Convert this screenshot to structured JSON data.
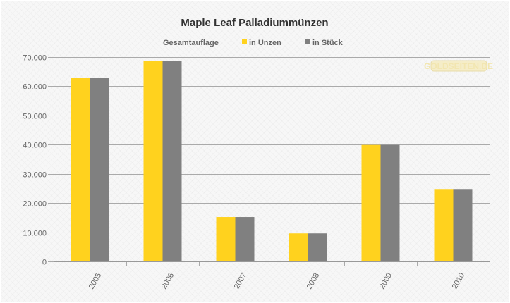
{
  "chart_data": {
    "type": "bar",
    "title": "Maple Leaf Palladiummünzen",
    "legend_title": "Gesamtauflage",
    "legend_position": "top",
    "categories": [
      "2005",
      "2006",
      "2007",
      "2008",
      "2009",
      "2010"
    ],
    "series": [
      {
        "name": "in Unzen",
        "color": "#ffd21e",
        "values": [
          63000,
          68700,
          15200,
          9600,
          39900,
          24800
        ]
      },
      {
        "name": "in Stück",
        "color": "#808080",
        "values": [
          63000,
          68700,
          15200,
          9600,
          39900,
          24800
        ]
      }
    ],
    "ylim": [
      0,
      70000
    ],
    "yticks": [
      0,
      10000,
      20000,
      30000,
      40000,
      50000,
      60000,
      70000
    ],
    "ytick_labels": [
      "0",
      "10.000",
      "20.000",
      "30.000",
      "40.000",
      "50.000",
      "60.000",
      "70.000"
    ],
    "grid": true,
    "watermark": "GOLDSEITEN.DE"
  }
}
